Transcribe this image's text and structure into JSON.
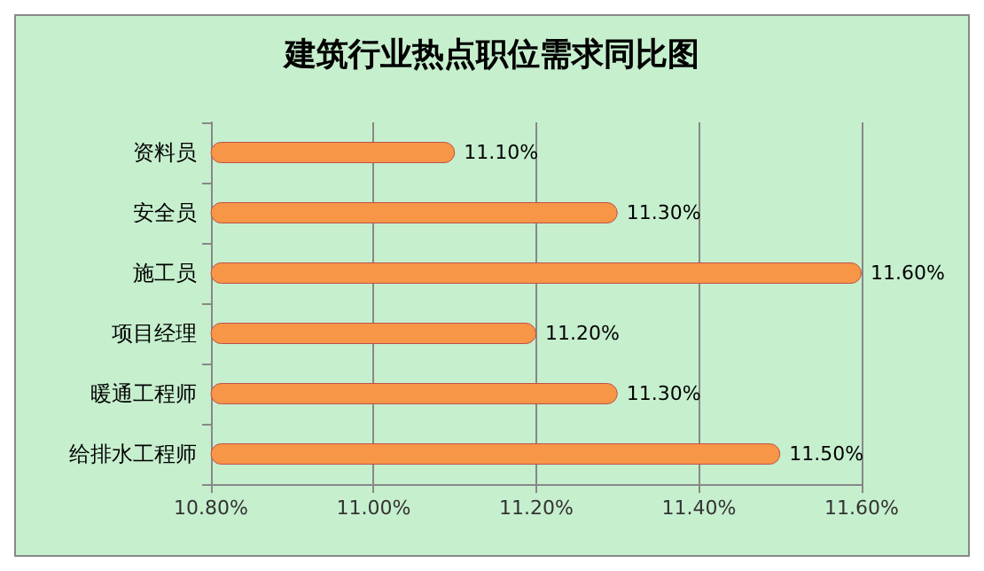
{
  "chart_data": {
    "type": "bar",
    "orientation": "horizontal",
    "title": "建筑行业热点职位需求同比图",
    "categories": [
      "资料员",
      "安全员",
      "施工员",
      "项目经理",
      "暖通工程师",
      "给排水工程师"
    ],
    "values": [
      11.1,
      11.3,
      11.6,
      11.2,
      11.3,
      11.5
    ],
    "value_labels": [
      "11.10%",
      "11.30%",
      "11.60%",
      "11.20%",
      "11.30%",
      "11.50%"
    ],
    "color": "#f79646",
    "xlim": [
      10.8,
      11.6
    ],
    "xticks": [
      {
        "value": 10.8,
        "label": "10.80%"
      },
      {
        "value": 11.0,
        "label": "11.00%"
      },
      {
        "value": 11.2,
        "label": "11.20%"
      },
      {
        "value": 11.4,
        "label": "11.40%"
      },
      {
        "value": 11.6,
        "label": "11.60%"
      }
    ],
    "grid": "x"
  }
}
